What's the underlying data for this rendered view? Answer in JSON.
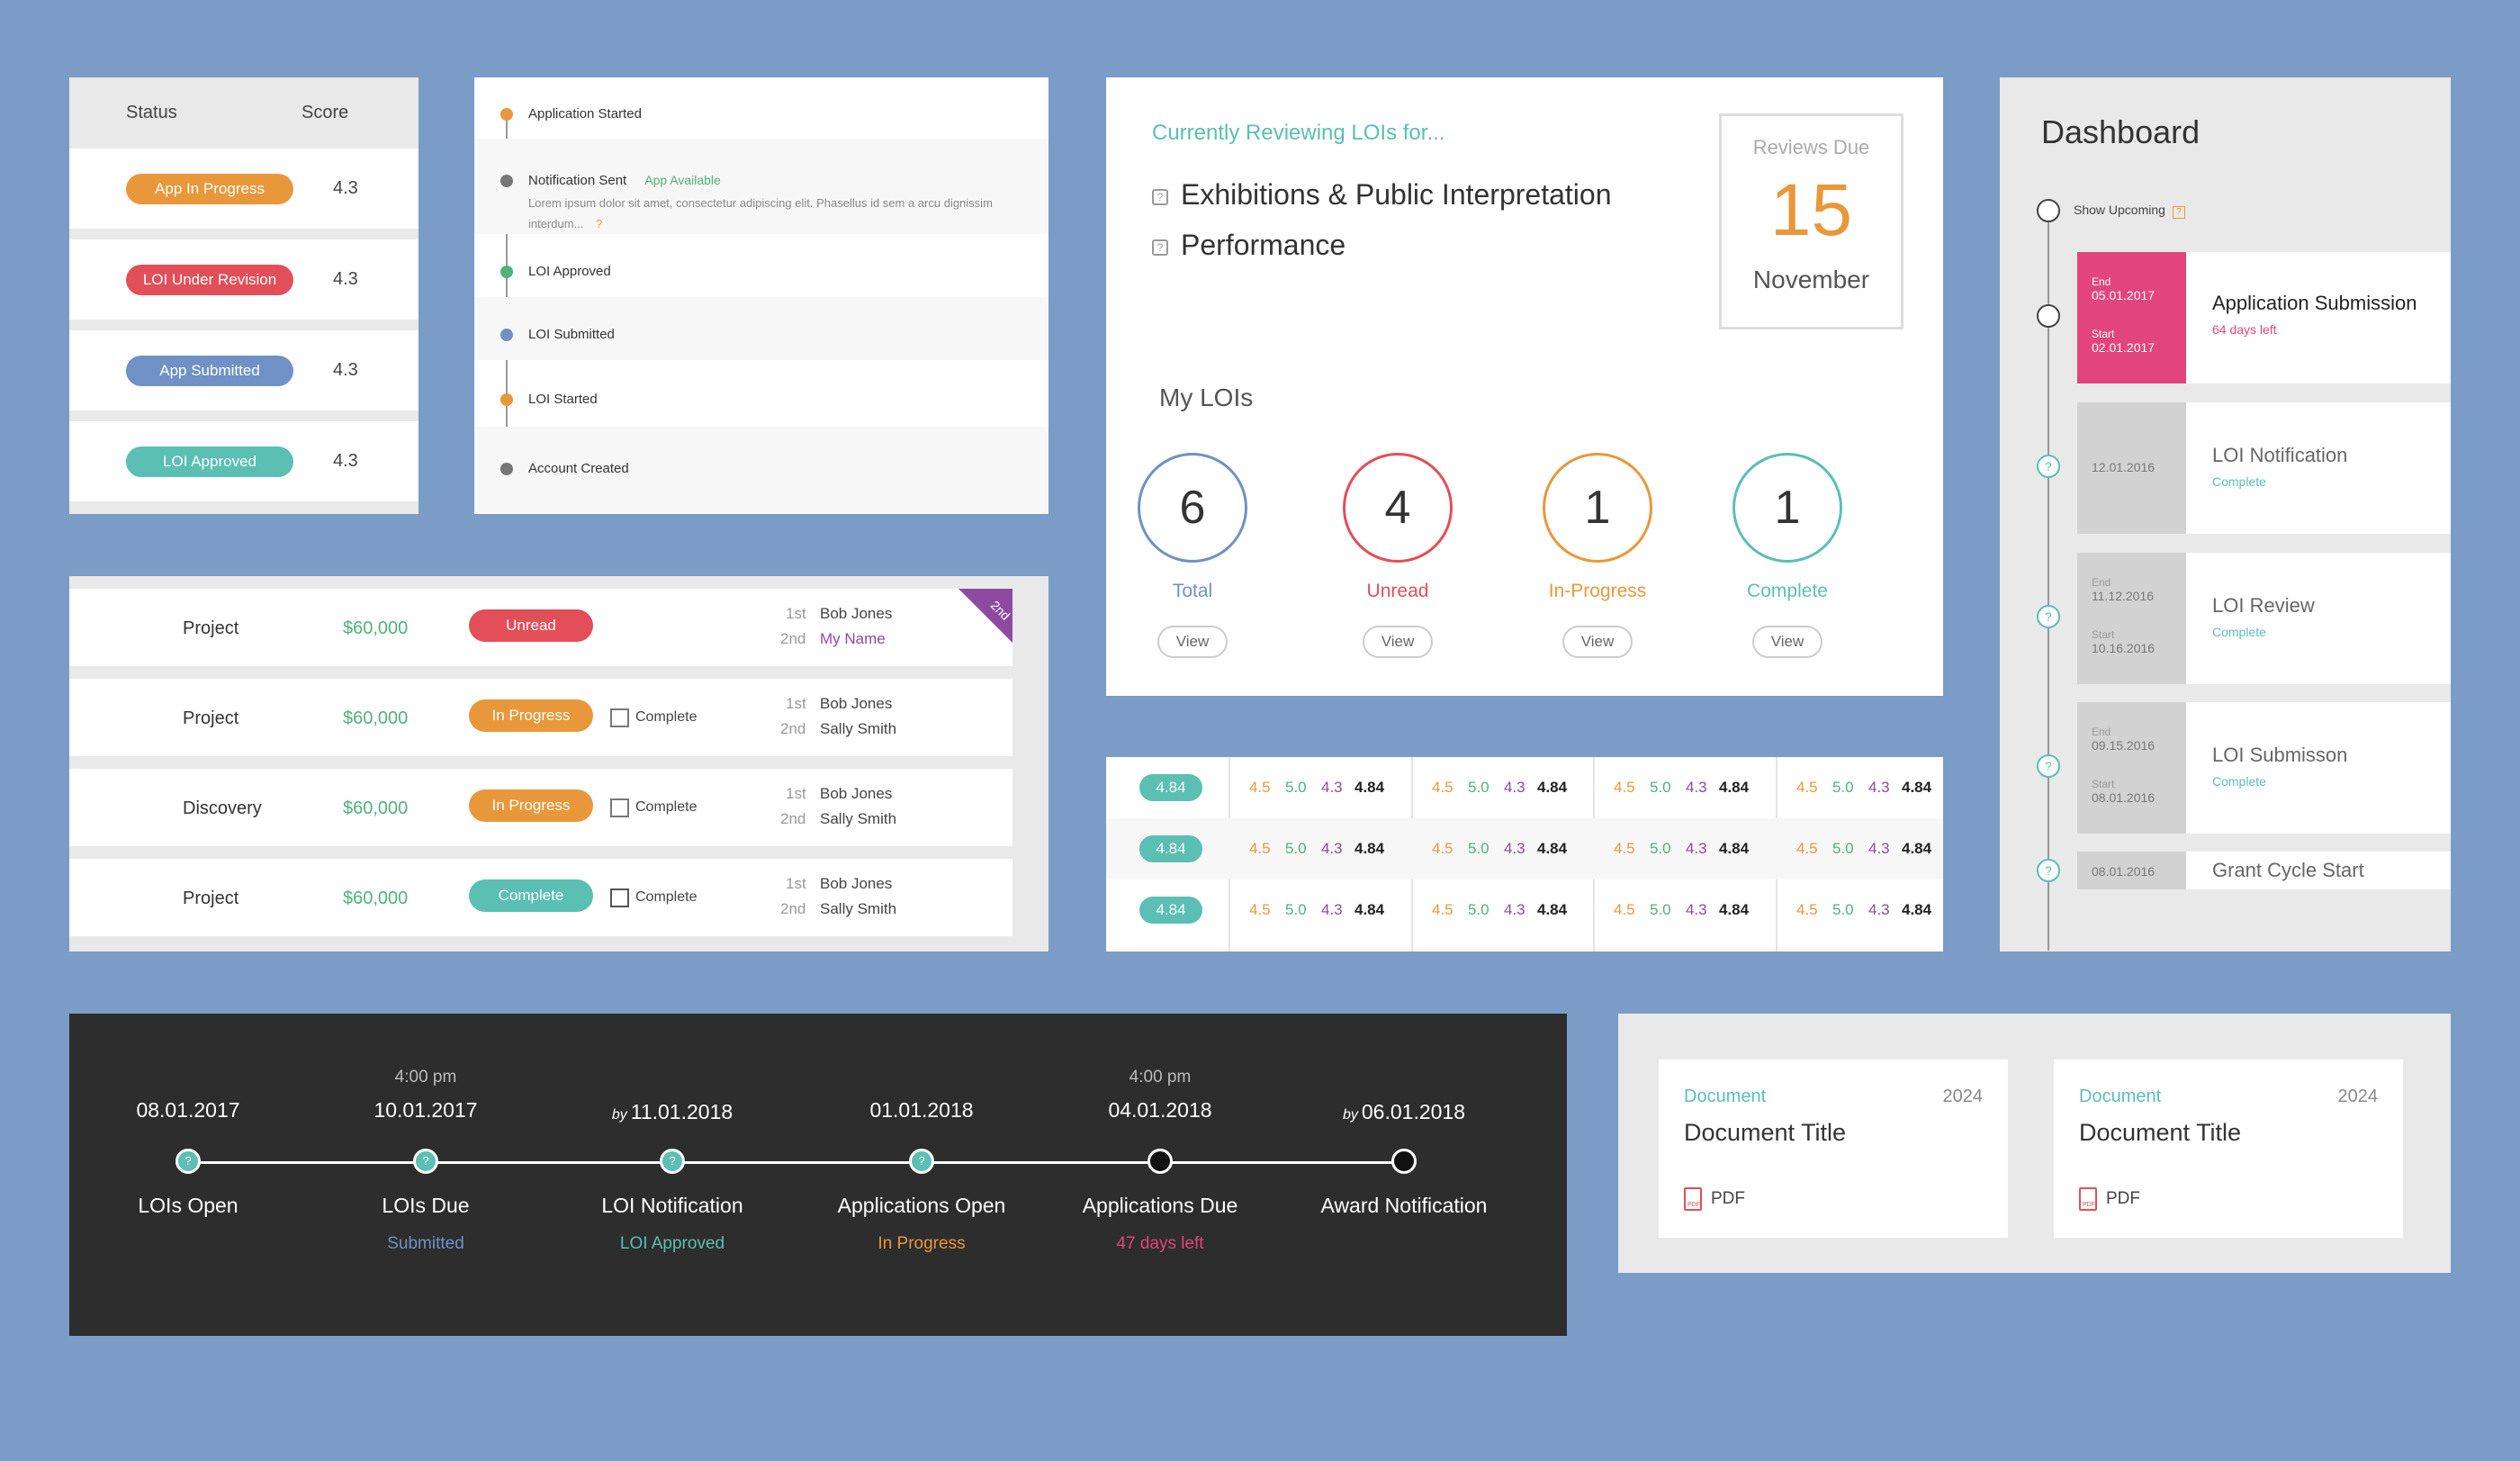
{
  "colors": {
    "orange": "#e8983b",
    "red": "#e24f58",
    "blue": "#6f91c6",
    "teal": "#5bbfb3",
    "green": "#4fb27a",
    "purple": "#8e4aa0",
    "pink": "#e2457b"
  },
  "status_table": {
    "headers": [
      "Status",
      "Score"
    ],
    "rows": [
      {
        "status": "App In Progress",
        "score": "4.3",
        "color": "orange"
      },
      {
        "status": "LOI Under Revision",
        "score": "4.3",
        "color": "red"
      },
      {
        "status": "App Submitted",
        "score": "4.3",
        "color": "blue"
      },
      {
        "status": "LOI Approved",
        "score": "4.3",
        "color": "teal"
      }
    ]
  },
  "activity": {
    "events": [
      {
        "label": "Application Started",
        "dot": "orange"
      },
      {
        "label": "Notification Sent",
        "tag": "App Available",
        "body": "Lorem ipsum dolor sit amet, consectetur adipiscing elit. Phasellus id sem a arcu dignissim interdum...",
        "dot": "gray"
      },
      {
        "label": "LOI Approved",
        "dot": "green"
      },
      {
        "label": "LOI Submitted",
        "dot": "blue"
      },
      {
        "label": "LOI Started",
        "dot": "orange"
      },
      {
        "label": "Account Created",
        "dot": "gray"
      }
    ]
  },
  "projects": {
    "rows": [
      {
        "name": "Project",
        "amount": "$60,000",
        "status": "Unread",
        "status_color": "red",
        "checkbox": false,
        "first_label": "1st",
        "first": "Bob Jones",
        "second_label": "2nd",
        "second": "My Name",
        "corner": "2nd"
      },
      {
        "name": "Project",
        "amount": "$60,000",
        "status": "In Progress",
        "status_color": "orange",
        "checkbox": true,
        "checkbox_label": "Complete",
        "first_label": "1st",
        "first": "Bob Jones",
        "second_label": "2nd",
        "second": "Sally Smith"
      },
      {
        "name": "Discovery",
        "amount": "$60,000",
        "status": "In Progress",
        "status_color": "orange",
        "checkbox": true,
        "checkbox_label": "Complete",
        "first_label": "1st",
        "first": "Bob Jones",
        "second_label": "2nd",
        "second": "Sally Smith"
      },
      {
        "name": "Project",
        "amount": "$60,000",
        "status": "Complete",
        "status_color": "teal",
        "checkbox": true,
        "checkbox_label": "Complete",
        "first_label": "1st",
        "first": "Bob Jones",
        "second_label": "2nd",
        "second": "Sally Smith"
      }
    ]
  },
  "reviews": {
    "heading": "Currently Reviewing LOIs for...",
    "programs": [
      "Exhibitions & Public Interpretation",
      "Performance"
    ],
    "due_title": "Reviews Due",
    "due_number": "15",
    "due_month": "November",
    "my_lois_title": "My LOIs",
    "stats": [
      {
        "value": "6",
        "label": "Total",
        "color": "blue",
        "button": "View"
      },
      {
        "value": "4",
        "label": "Unread",
        "color": "red",
        "button": "View"
      },
      {
        "value": "1",
        "label": "In-Progress",
        "color": "orange",
        "button": "View"
      },
      {
        "value": "1",
        "label": "Complete",
        "color": "teal",
        "button": "View"
      }
    ]
  },
  "score_grid": {
    "rows": [
      {
        "pill": "4.84",
        "groups": [
          [
            "4.5",
            "5.0",
            "4.3",
            "4.84"
          ],
          [
            "4.5",
            "5.0",
            "4.3",
            "4.84"
          ],
          [
            "4.5",
            "5.0",
            "4.3",
            "4.84"
          ],
          [
            "4.5",
            "5.0",
            "4.3",
            "4.84"
          ]
        ]
      },
      {
        "pill": "4.84",
        "groups": [
          [
            "4.5",
            "5.0",
            "4.3",
            "4.84"
          ],
          [
            "4.5",
            "5.0",
            "4.3",
            "4.84"
          ],
          [
            "4.5",
            "5.0",
            "4.3",
            "4.84"
          ],
          [
            "4.5",
            "5.0",
            "4.3",
            "4.84"
          ]
        ]
      },
      {
        "pill": "4.84",
        "groups": [
          [
            "4.5",
            "5.0",
            "4.3",
            "4.84"
          ],
          [
            "4.5",
            "5.0",
            "4.3",
            "4.84"
          ],
          [
            "4.5",
            "5.0",
            "4.3",
            "4.84"
          ],
          [
            "4.5",
            "5.0",
            "4.3",
            "4.84"
          ]
        ]
      }
    ]
  },
  "dashboard": {
    "title": "Dashboard",
    "show_upcoming": "Show Upcoming",
    "items": [
      {
        "end_label": "End",
        "end": "05.01.2017",
        "start_label": "Start",
        "start": "02.01.2017",
        "title": "Application Submission",
        "status": "64 days left",
        "active": true
      },
      {
        "date": "12.01.2016",
        "title": "LOI Notification",
        "status": "Complete"
      },
      {
        "end_label": "End",
        "end": "11.12.2016",
        "start_label": "Start",
        "start": "10.16.2016",
        "title": "LOI Review",
        "status": "Complete"
      },
      {
        "end_label": "End",
        "end": "09.15.2016",
        "start_label": "Start",
        "start": "08.01.2016",
        "title": "LOI Submisson",
        "status": "Complete"
      },
      {
        "date": "08.01.2016",
        "title": "Grant Cycle Start"
      }
    ]
  },
  "timeline": {
    "steps": [
      {
        "time": "",
        "by": "",
        "date": "08.01.2017",
        "label": "LOIs Open",
        "sub": "",
        "sub_color": "",
        "node": "q"
      },
      {
        "time": "4:00 pm",
        "by": "",
        "date": "10.01.2017",
        "label": "LOIs Due",
        "sub": "Submitted",
        "sub_color": "blue",
        "node": "q"
      },
      {
        "time": "",
        "by": "by",
        "date": "11.01.2018",
        "label": "LOI Notification",
        "sub": "LOI Approved",
        "sub_color": "teal",
        "node": "q"
      },
      {
        "time": "",
        "by": "",
        "date": "01.01.2018",
        "label": "Applications Open",
        "sub": "In Progress",
        "sub_color": "orange",
        "node": "q"
      },
      {
        "time": "4:00 pm",
        "by": "",
        "date": "04.01.2018",
        "label": "Applications Due",
        "sub": "47 days left",
        "sub_color": "pink",
        "node": "o"
      },
      {
        "time": "",
        "by": "by",
        "date": "06.01.2018",
        "label": "Award Notification",
        "sub": "",
        "sub_color": "",
        "node": "o"
      }
    ]
  },
  "documents": [
    {
      "type": "Document",
      "year": "2024",
      "title": "Document Title",
      "file": "PDF"
    },
    {
      "type": "Document",
      "year": "2024",
      "title": "Document Title",
      "file": "PDF"
    }
  ]
}
